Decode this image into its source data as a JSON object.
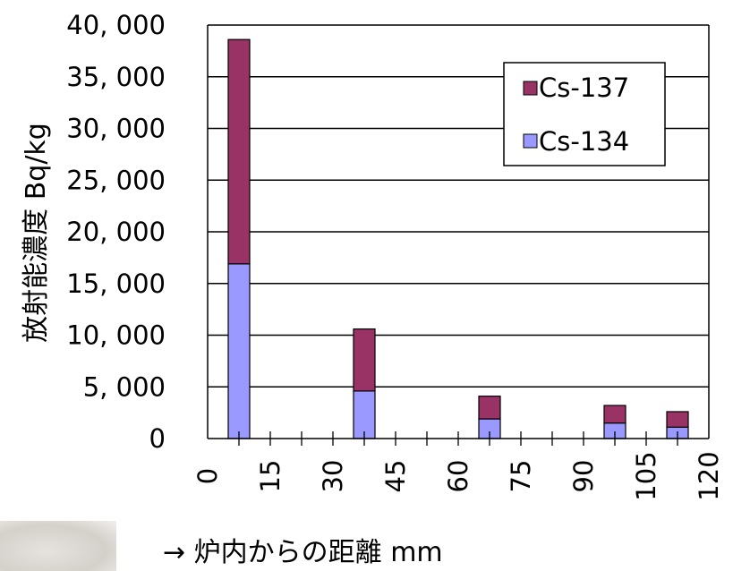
{
  "chart_data": {
    "type": "bar",
    "stacked": true,
    "title": "",
    "ylabel": "放射能濃度 Bq/kg",
    "xlabel": "→ 炉内からの距離 mm",
    "ylim": [
      0,
      40000
    ],
    "xlim": [
      0,
      120
    ],
    "y_ticks": [
      0,
      5000,
      10000,
      15000,
      20000,
      25000,
      30000,
      35000,
      40000
    ],
    "y_tick_labels": [
      "0",
      "5, 000",
      "10, 000",
      "15, 000",
      "20, 000",
      "25, 000",
      "30, 000",
      "35, 000",
      "40, 000"
    ],
    "x_ticks": [
      0,
      15,
      30,
      45,
      60,
      75,
      90,
      105,
      120
    ],
    "x_tick_labels": [
      "0",
      "15",
      "30",
      "45",
      "60",
      "75",
      "90",
      "105",
      "120"
    ],
    "x": [
      7.5,
      37.5,
      67.5,
      97.5,
      112.5
    ],
    "grid": "horizontal",
    "legend_position": "top-right",
    "series": [
      {
        "name": "Cs-134",
        "color": "#9999ff",
        "values": [
          16900,
          4600,
          1900,
          1500,
          1100
        ]
      },
      {
        "name": "Cs-137",
        "color": "#993366",
        "values": [
          21700,
          6000,
          2200,
          1700,
          1500
        ]
      }
    ],
    "legend": [
      "Cs-137",
      "Cs-134"
    ]
  }
}
